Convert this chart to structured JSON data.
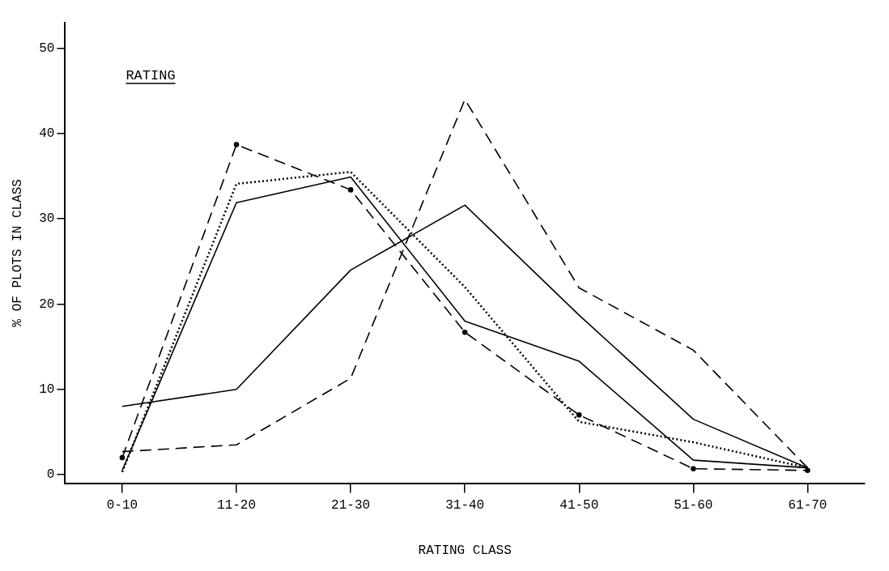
{
  "chart_data": {
    "type": "line",
    "xlabel": "RATING CLASS",
    "ylabel": "% OF PLOTS IN CLASS",
    "annotations": [
      "RATING"
    ],
    "categories": [
      "0-10",
      "11-20",
      "21-30",
      "31-40",
      "41-50",
      "51-60",
      "61-70"
    ],
    "ylim": [
      -1,
      53
    ],
    "yticks": [
      0,
      10,
      20,
      30,
      40,
      50
    ],
    "grid": false,
    "legend": false,
    "series": [
      {
        "color": "#000000",
        "line_style": "solid",
        "marker": "none",
        "values": [
          8,
          10,
          24,
          31.6,
          18.7,
          6.5,
          0.8
        ]
      },
      {
        "color": "#000000",
        "line_style": "dashed",
        "marker": "none",
        "values": [
          2.7,
          3.5,
          11.3,
          44,
          21.9,
          14.6,
          0.8
        ]
      },
      {
        "color": "#000000",
        "line_style": "solid",
        "marker": "none",
        "values": [
          0.5,
          31.9,
          34.9,
          18,
          13.3,
          1.7,
          0.8
        ]
      },
      {
        "color": "#000000",
        "line_style": "dotted",
        "marker": "none",
        "values": [
          0.3,
          34.1,
          35.5,
          22,
          6.2,
          3.8,
          0.8
        ]
      },
      {
        "color": "#000000",
        "line_style": "dashed",
        "marker": "circle",
        "values": [
          2,
          38.7,
          33.4,
          16.7,
          7,
          0.7,
          0.5
        ]
      }
    ]
  }
}
